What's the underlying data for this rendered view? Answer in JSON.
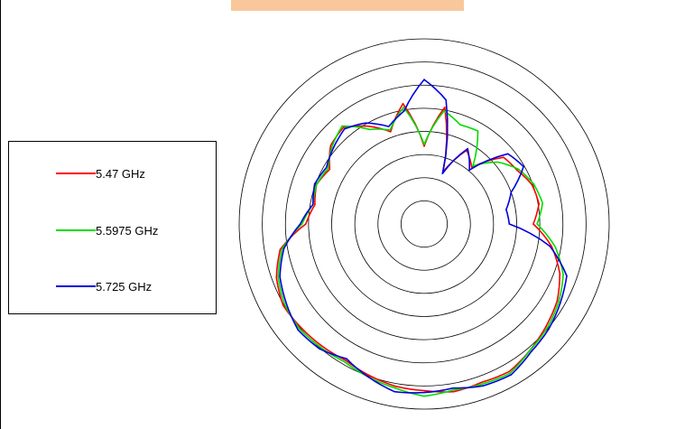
{
  "chart_data": {
    "type": "polar-line",
    "title": "",
    "radial_rings": 8,
    "angle_direction": "clockwise from top",
    "angles_deg": [
      0,
      10,
      20,
      30,
      40,
      50,
      60,
      70,
      80,
      90,
      100,
      110,
      120,
      130,
      140,
      150,
      160,
      170,
      180,
      190,
      200,
      210,
      220,
      230,
      240,
      250,
      260,
      270,
      280,
      290,
      300,
      310,
      320,
      330,
      340,
      350
    ],
    "legend_position": "left",
    "series": [
      {
        "name": "5.47 GHz",
        "color": "#ff0000",
        "values": [
          4.2,
          6.4,
          3.0,
          4.6,
          4.0,
          5.6,
          5.8,
          6.2,
          6.3,
          5.9,
          7.0,
          7.8,
          8.3,
          8.6,
          8.9,
          9.2,
          9.1,
          9.2,
          9.0,
          8.9,
          8.7,
          8.5,
          8.6,
          8.7,
          8.8,
          8.5,
          7.9,
          6.4,
          6.0,
          6.2,
          5.9,
          6.6,
          6.8,
          6.1,
          5.3,
          6.6
        ]
      },
      {
        "name": "5.5975 GHz",
        "color": "#00dd00",
        "values": [
          4.3,
          6.2,
          5.7,
          5.8,
          4.1,
          5.2,
          5.9,
          6.3,
          6.5,
          6.1,
          7.2,
          8.0,
          8.4,
          8.7,
          8.9,
          9.3,
          9.2,
          9.1,
          9.3,
          9.0,
          8.8,
          8.6,
          8.7,
          8.8,
          8.7,
          8.4,
          7.8,
          6.6,
          6.1,
          6.2,
          6.0,
          6.5,
          6.9,
          5.9,
          5.4,
          6.4
        ]
      },
      {
        "name": "5.725 GHz",
        "color": "#0000dd",
        "values": [
          7.8,
          6.8,
          2.9,
          4.7,
          3.8,
          5.9,
          6.2,
          5.0,
          4.5,
          4.6,
          6.9,
          8.2,
          8.5,
          8.8,
          9.0,
          9.4,
          9.3,
          9.0,
          9.1,
          9.2,
          8.8,
          8.4,
          8.8,
          8.9,
          8.6,
          8.3,
          7.7,
          6.7,
          6.1,
          6.3,
          6.1,
          6.4,
          6.7,
          6.3,
          5.6,
          6.2
        ]
      }
    ]
  }
}
